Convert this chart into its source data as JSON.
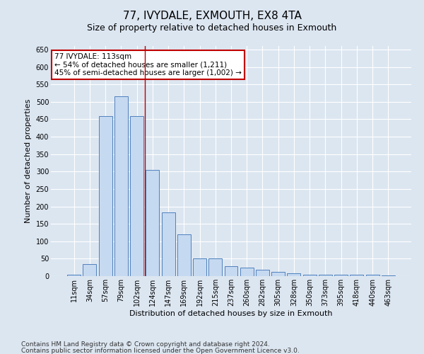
{
  "title": "77, IVYDALE, EXMOUTH, EX8 4TA",
  "subtitle": "Size of property relative to detached houses in Exmouth",
  "xlabel": "Distribution of detached houses by size in Exmouth",
  "ylabel": "Number of detached properties",
  "categories": [
    "11sqm",
    "34sqm",
    "57sqm",
    "79sqm",
    "102sqm",
    "124sqm",
    "147sqm",
    "169sqm",
    "192sqm",
    "215sqm",
    "237sqm",
    "260sqm",
    "282sqm",
    "305sqm",
    "328sqm",
    "350sqm",
    "373sqm",
    "395sqm",
    "418sqm",
    "440sqm",
    "463sqm"
  ],
  "values": [
    5,
    35,
    458,
    515,
    458,
    305,
    183,
    120,
    50,
    50,
    28,
    25,
    18,
    12,
    8,
    5,
    4,
    4,
    5,
    5,
    3
  ],
  "bar_color": "#c5d9f1",
  "bar_edge_color": "#4f81bd",
  "vline_x": 4.5,
  "vline_color": "#c00000",
  "annotation_text": "77 IVYDALE: 113sqm\n← 54% of detached houses are smaller (1,211)\n45% of semi-detached houses are larger (1,002) →",
  "annotation_box_color": "white",
  "annotation_box_edge": "#c00000",
  "ylim": [
    0,
    660
  ],
  "yticks": [
    0,
    50,
    100,
    150,
    200,
    250,
    300,
    350,
    400,
    450,
    500,
    550,
    600,
    650
  ],
  "footer1": "Contains HM Land Registry data © Crown copyright and database right 2024.",
  "footer2": "Contains public sector information licensed under the Open Government Licence v3.0.",
  "bg_color": "#dce6f1",
  "plot_bg_color": "#dce6f1",
  "grid_color": "white",
  "title_fontsize": 11,
  "subtitle_fontsize": 9,
  "label_fontsize": 8,
  "tick_fontsize": 7,
  "footer_fontsize": 6.5
}
